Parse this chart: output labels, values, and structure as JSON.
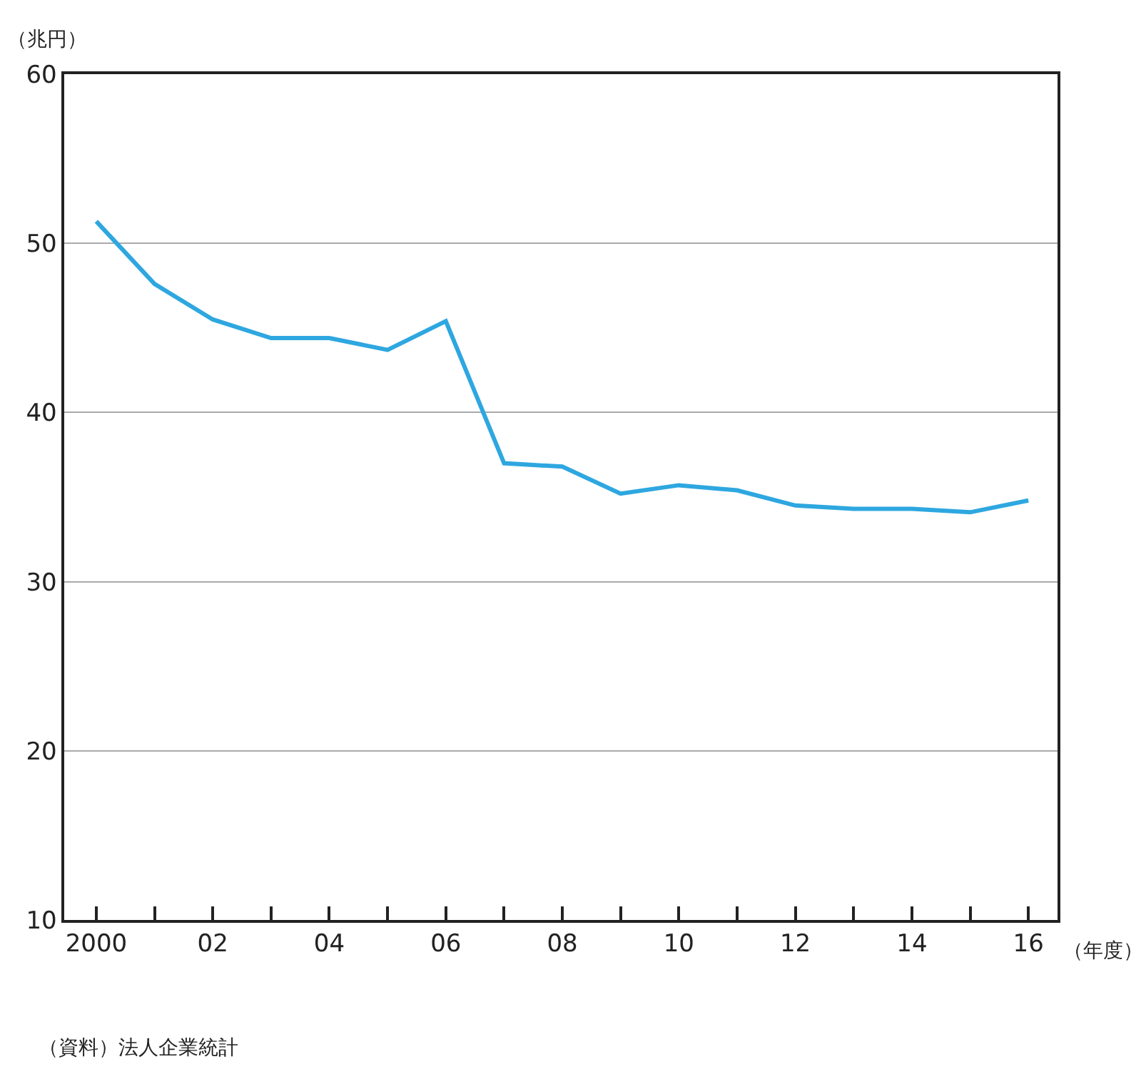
{
  "chart_data": {
    "type": "line",
    "ylabel": "（兆円）",
    "xlabel": "（年度）",
    "annotations": [
      "（資料）法人企業統計"
    ],
    "x": [
      2000,
      2001,
      2002,
      2003,
      2004,
      2005,
      2006,
      2007,
      2008,
      2009,
      2010,
      2011,
      2012,
      2013,
      2014,
      2015,
      2016
    ],
    "series": [
      {
        "color": "#2ea7e0",
        "values": [
          51.3,
          47.6,
          45.5,
          44.4,
          44.4,
          43.7,
          45.4,
          37.0,
          36.8,
          35.2,
          35.7,
          35.4,
          34.5,
          34.3,
          34.3,
          34.1,
          34.8
        ]
      }
    ],
    "xlim": [
      1999.45,
      2016.5
    ],
    "xticks": [
      {
        "value": 2000,
        "label": "2000"
      },
      {
        "value": 2001,
        "label": null
      },
      {
        "value": 2002,
        "label": "02"
      },
      {
        "value": 2003,
        "label": null
      },
      {
        "value": 2004,
        "label": "04"
      },
      {
        "value": 2005,
        "label": null
      },
      {
        "value": 2006,
        "label": "06"
      },
      {
        "value": 2007,
        "label": null
      },
      {
        "value": 2008,
        "label": "08"
      },
      {
        "value": 2009,
        "label": null
      },
      {
        "value": 2010,
        "label": "10"
      },
      {
        "value": 2011,
        "label": null
      },
      {
        "value": 2012,
        "label": "12"
      },
      {
        "value": 2013,
        "label": null
      },
      {
        "value": 2014,
        "label": "14"
      },
      {
        "value": 2015,
        "label": null
      },
      {
        "value": 2016,
        "label": "16"
      }
    ],
    "ylim": [
      10,
      60
    ],
    "yticks": [
      10,
      20,
      30,
      40,
      50,
      60
    ],
    "grid": "y",
    "marker": "none",
    "line_style": "solid"
  }
}
